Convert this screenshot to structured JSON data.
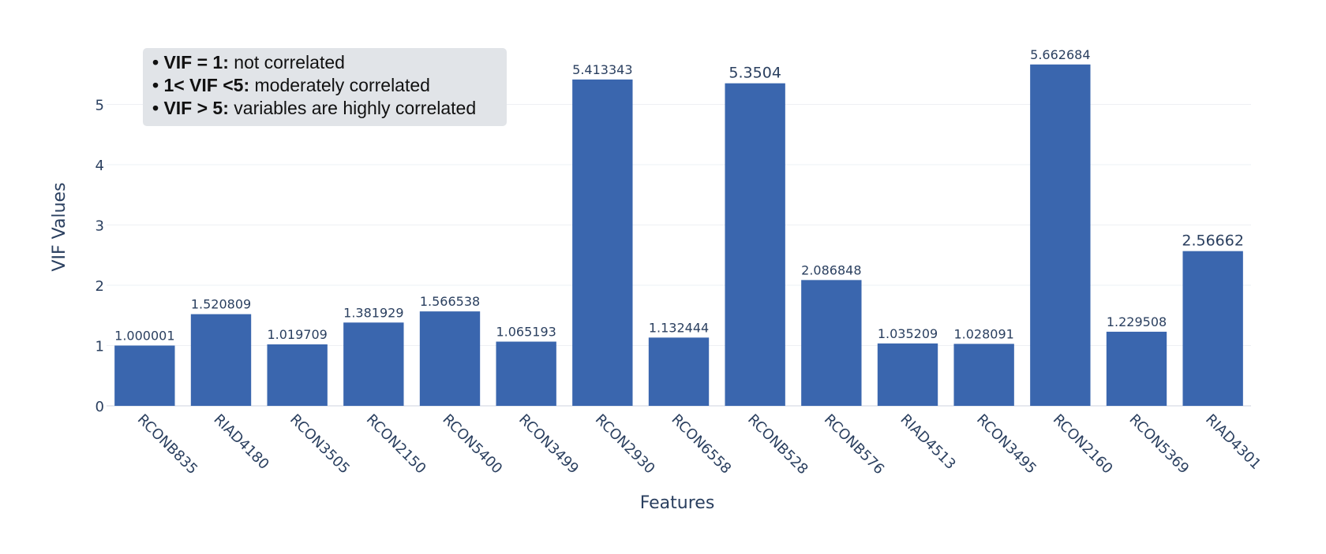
{
  "chart_data": {
    "type": "bar",
    "title": "",
    "xlabel": "Features",
    "ylabel": "VIF Values",
    "ylim": [
      0,
      5.8
    ],
    "yticks": [
      0,
      1,
      2,
      3,
      4,
      5
    ],
    "grid": true,
    "bar_color": "#3a66ae",
    "categories": [
      "RCONB835",
      "RIAD4180",
      "RCON3505",
      "RCON2150",
      "RCON5400",
      "RCON3499",
      "RCON2930",
      "RCON6558",
      "RCONB528",
      "RCONB576",
      "RIAD4513",
      "RCON3495",
      "RCON2160",
      "RCON5369",
      "RIAD4301"
    ],
    "values": [
      1.000001,
      1.520809,
      1.019709,
      1.381929,
      1.566538,
      1.065193,
      5.413343,
      1.132444,
      5.3504,
      2.086848,
      1.035209,
      1.028091,
      5.662684,
      1.229508,
      2.56662
    ],
    "labels": [
      "1.000001",
      "1.520809",
      "1.019709",
      "1.381929",
      "1.566538",
      "1.065193",
      "5.413343",
      "1.132444",
      "5.3504",
      "2.086848",
      "1.035209",
      "1.028091",
      "5.662684",
      "1.229508",
      "2.56662"
    ]
  },
  "annotation": {
    "lines": [
      {
        "bold": "• VIF = 1:",
        "text": " not correlated"
      },
      {
        "bold": "• 1< VIF <5:",
        "text": " moderately correlated"
      },
      {
        "bold": "• VIF > 5:",
        "text": " variables are highly correlated"
      }
    ]
  }
}
